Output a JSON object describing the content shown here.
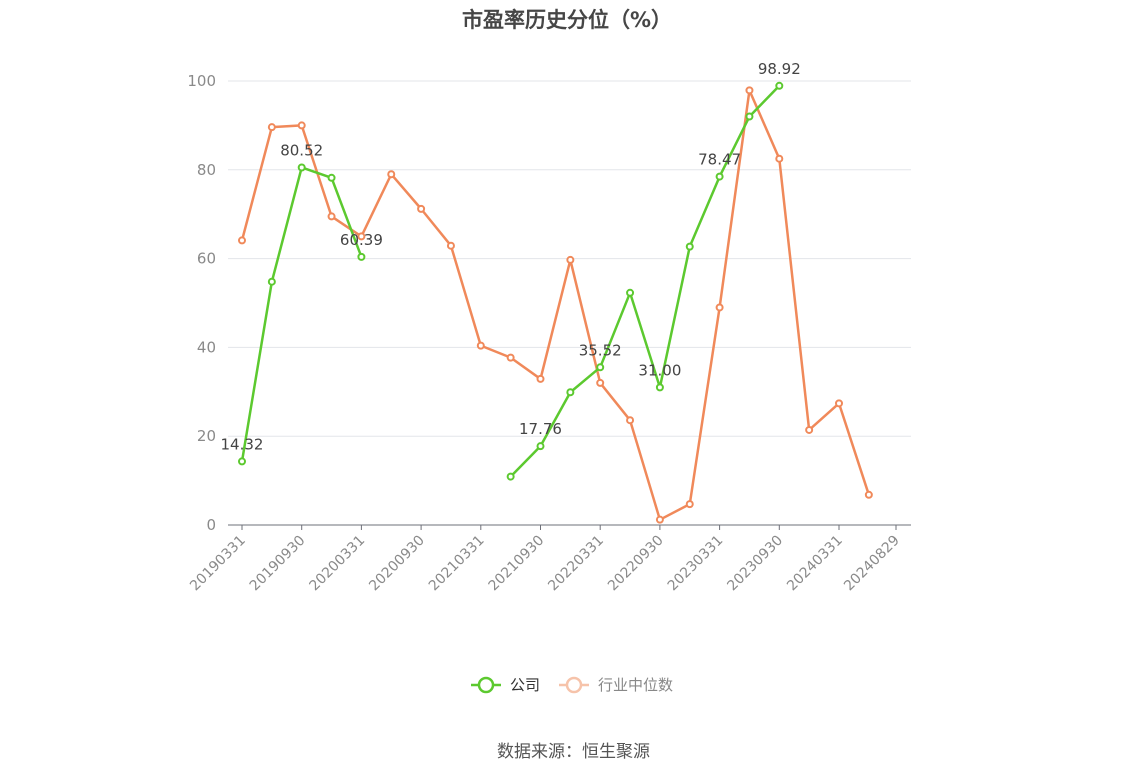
{
  "chart_data": {
    "type": "line",
    "title": "市盈率历史分位（%）",
    "source": "数据来源：恒生聚源",
    "ylim": [
      0,
      100
    ],
    "yticks": [
      0,
      20,
      40,
      60,
      80,
      100
    ],
    "x_tick_labels": [
      "20190331",
      "20190930",
      "20200331",
      "20200930",
      "20210331",
      "20210930",
      "20220331",
      "20220930",
      "20230331",
      "20230930",
      "20240331",
      "20240829"
    ],
    "x": [
      "20190331",
      "20190630",
      "20190930",
      "20191231",
      "20200331",
      "20200630",
      "20200930",
      "20201231",
      "20210331",
      "20210630",
      "20210930",
      "20211231",
      "20220331",
      "20220630",
      "20220930",
      "20221231",
      "20230331",
      "20230630",
      "20230930",
      "20231231",
      "20240331",
      "20240630",
      "20240829"
    ],
    "series": [
      {
        "name": "公司",
        "color": "#5cc92f",
        "values": [
          14.32,
          54.8,
          80.52,
          78.2,
          60.39,
          null,
          null,
          null,
          null,
          10.9,
          17.76,
          29.9,
          35.52,
          52.3,
          31.0,
          62.7,
          78.47,
          92.0,
          98.92,
          null,
          null,
          null,
          null
        ],
        "labels": [
          14.32,
          null,
          80.52,
          null,
          60.39,
          null,
          null,
          null,
          null,
          null,
          17.76,
          null,
          35.52,
          null,
          31.0,
          null,
          78.47,
          null,
          98.92,
          null,
          null,
          null,
          null
        ]
      },
      {
        "name": "行业中位数",
        "color": "#f0895a",
        "values": [
          64.1,
          89.6,
          90.0,
          69.5,
          65.0,
          79.0,
          71.2,
          62.9,
          40.4,
          37.7,
          32.9,
          59.7,
          32.0,
          23.6,
          1.2,
          4.7,
          49.0,
          97.9,
          82.5,
          21.4,
          27.4,
          6.8,
          null
        ]
      }
    ],
    "legend_position": "bottom-center",
    "grid": true
  }
}
